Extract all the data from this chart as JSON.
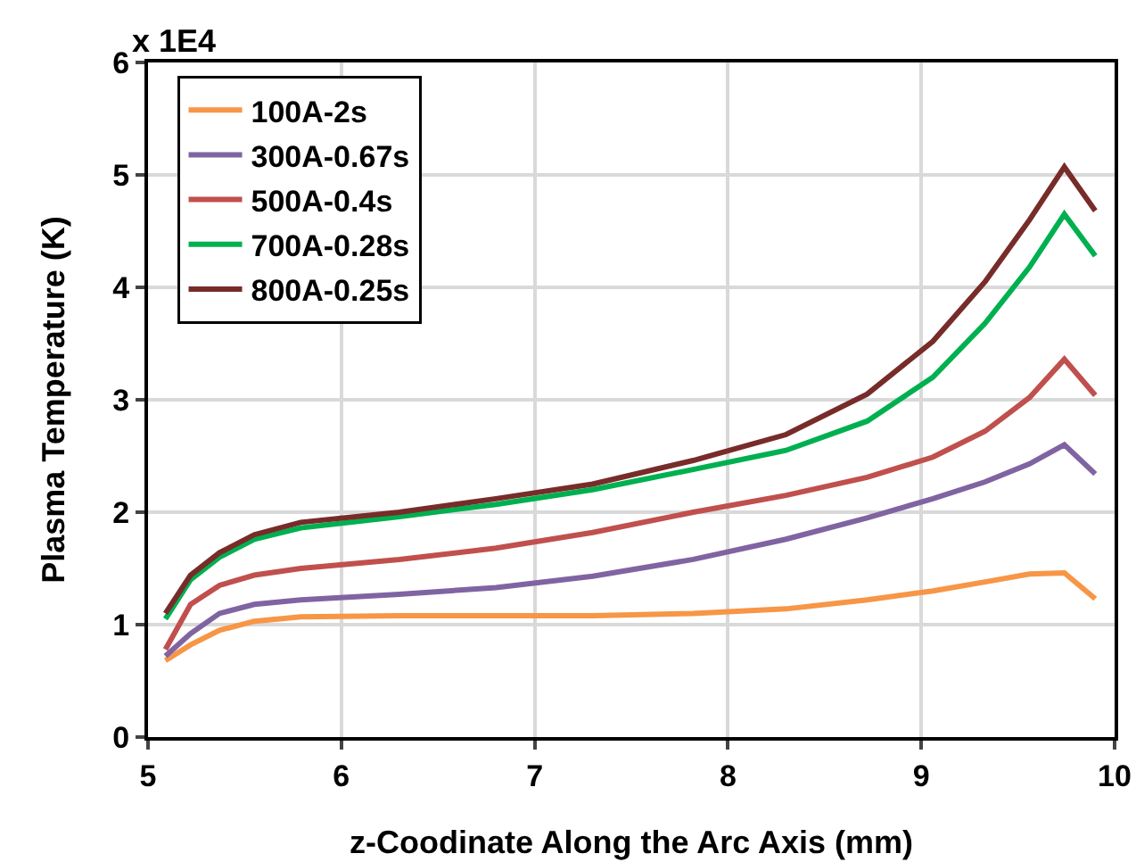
{
  "chart_data": {
    "type": "line",
    "xlabel": "z-Coodinate Along the Arc Axis (mm)",
    "ylabel": "Plasma Temperature (K)",
    "annotations": [
      "x 1E4"
    ],
    "x": [
      5.09,
      5.22,
      5.37,
      5.55,
      5.79,
      6.3,
      6.8,
      7.3,
      7.82,
      8.3,
      8.72,
      9.06,
      9.33,
      9.56,
      9.74,
      9.9
    ],
    "series": [
      {
        "name": "100A-2s",
        "color": "#f79646",
        "values": [
          0.68,
          0.82,
          0.95,
          1.03,
          1.07,
          1.08,
          1.08,
          1.08,
          1.1,
          1.14,
          1.22,
          1.3,
          1.38,
          1.45,
          1.46,
          1.23
        ]
      },
      {
        "name": "300A-0.67s",
        "color": "#8064a2",
        "values": [
          0.72,
          0.92,
          1.1,
          1.18,
          1.22,
          1.27,
          1.33,
          1.43,
          1.58,
          1.76,
          1.95,
          2.12,
          2.27,
          2.43,
          2.6,
          2.34
        ]
      },
      {
        "name": "500A-0.4s",
        "color": "#c0504d",
        "values": [
          0.78,
          1.18,
          1.35,
          1.44,
          1.5,
          1.58,
          1.68,
          1.82,
          2.0,
          2.15,
          2.31,
          2.49,
          2.72,
          3.02,
          3.36,
          3.04
        ]
      },
      {
        "name": "700A-0.28s",
        "color": "#00b050",
        "values": [
          1.05,
          1.4,
          1.6,
          1.76,
          1.86,
          1.96,
          2.07,
          2.2,
          2.38,
          2.55,
          2.81,
          3.2,
          3.68,
          4.18,
          4.65,
          4.28
        ]
      },
      {
        "name": "800A-0.25s",
        "color": "#772c2a",
        "values": [
          1.1,
          1.44,
          1.64,
          1.8,
          1.91,
          2.0,
          2.12,
          2.25,
          2.46,
          2.69,
          3.05,
          3.52,
          4.05,
          4.6,
          5.07,
          4.68
        ]
      }
    ],
    "xlim": [
      5,
      10
    ],
    "xticks": [
      5,
      6,
      7,
      8,
      9,
      10
    ],
    "ylim": [
      0,
      6
    ],
    "yticks": [
      0,
      1,
      2,
      3,
      4,
      5,
      6
    ],
    "grid": true,
    "legend": "top left",
    "marker": "none",
    "line_style": "solid"
  }
}
